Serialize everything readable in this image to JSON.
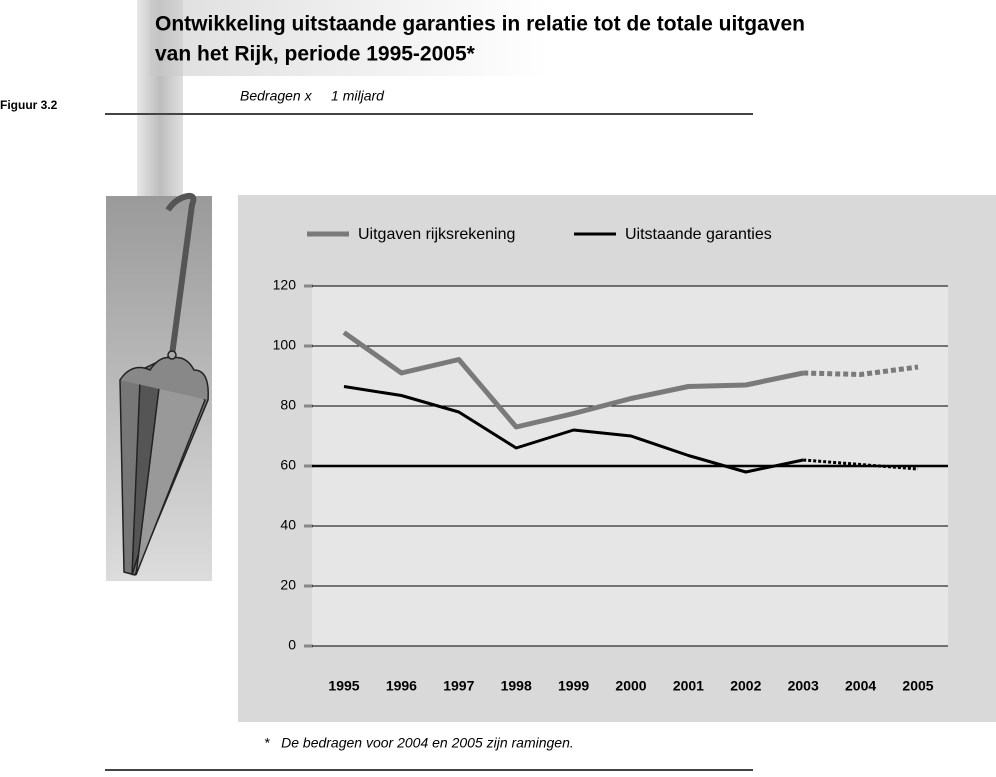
{
  "chart_data": {
    "type": "line",
    "figure_label": "Figuur 3.2",
    "title_lines": [
      "Ontwikkeling uitstaande garanties in relatie tot de totale uitgaven",
      "van het Rijk, periode 1995-2005*"
    ],
    "subtitle": "Bedragen x     1 miljard",
    "footnote": "*   De bedragen voor 2004 en 2005 zijn ramingen.",
    "categories": [
      "1995",
      "1996",
      "1997",
      "1998",
      "1999",
      "2000",
      "2001",
      "2002",
      "2003",
      "2004",
      "2005"
    ],
    "series": [
      {
        "name": "Uitgaven rijksrekening",
        "color": "#7a7a7a",
        "width": 5,
        "values": [
          104.5,
          91,
          95.5,
          73,
          77.5,
          82.5,
          86.5,
          87,
          91,
          90.5,
          93
        ]
      },
      {
        "name": "Uitstaande garanties",
        "color": "#000000",
        "width": 3,
        "values": [
          86.5,
          83.5,
          78,
          66,
          72,
          70,
          63.5,
          58,
          62,
          60.5,
          59
        ]
      }
    ],
    "dash_after_category": "2003",
    "ylim": [
      0,
      120
    ],
    "yticks": [
      0,
      20,
      40,
      60,
      80,
      100,
      120
    ],
    "grid": true,
    "highlight_gridline": 60
  }
}
